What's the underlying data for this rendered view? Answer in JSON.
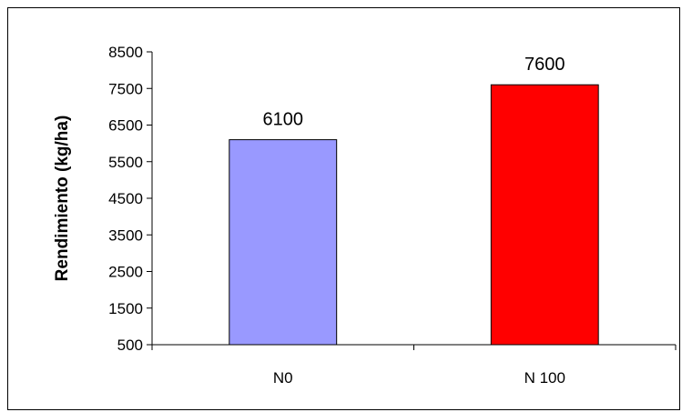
{
  "chart_data": {
    "type": "bar",
    "categories": [
      "N0",
      "N 100"
    ],
    "values": [
      6100,
      7600
    ],
    "data_labels": [
      "6100",
      "7600"
    ],
    "colors": [
      "#9999ff",
      "#ff0000"
    ],
    "title": "",
    "xlabel": "",
    "ylabel": "Rendimiento (kg/ha)",
    "ylim": [
      500,
      8500
    ],
    "yticks": [
      500,
      1500,
      2500,
      3500,
      4500,
      5500,
      6500,
      7500,
      8500
    ],
    "ytick_labels": [
      "500",
      "1500",
      "2500",
      "3500",
      "4500",
      "5500",
      "6500",
      "7500",
      "8500"
    ],
    "grid": false,
    "legend": "none"
  }
}
